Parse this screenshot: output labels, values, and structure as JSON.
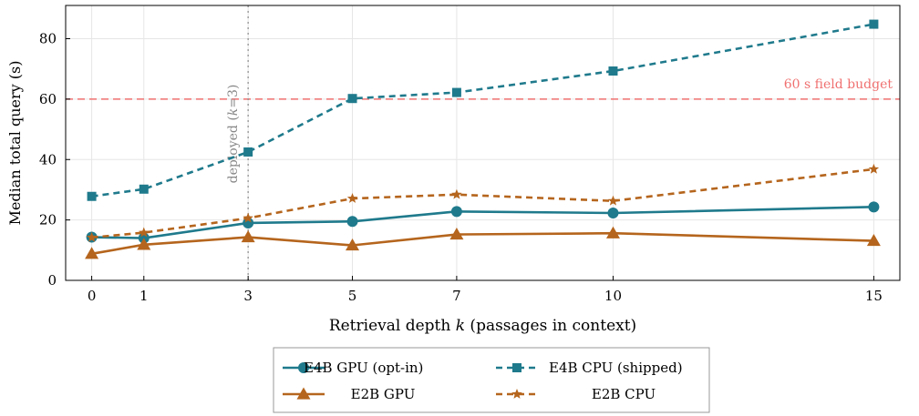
{
  "chart_data": {
    "type": "line",
    "title": "",
    "xlabel_parts": [
      "Retrieval depth ",
      "k",
      " (passages in context)"
    ],
    "ylabel": "Median total query (s)",
    "x": [
      0,
      1,
      3,
      5,
      7,
      10,
      15
    ],
    "xticks": [
      "0",
      "1",
      "3",
      "5",
      "7",
      "10",
      "15"
    ],
    "yticks": [
      "0",
      "20",
      "40",
      "60",
      "80"
    ],
    "xlim": [
      -0.5,
      15.5
    ],
    "ylim": [
      0,
      91
    ],
    "grid": true,
    "legend_position": "bottom-center",
    "series": [
      {
        "name": "E4B GPU (opt-in)",
        "values": [
          14.3,
          14.0,
          19.0,
          19.5,
          22.8,
          22.3,
          24.3
        ],
        "color": "#1f7a8c",
        "dash": "solid",
        "marker": "circle"
      },
      {
        "name": "E4B CPU (shipped)",
        "values": [
          27.8,
          30.2,
          42.5,
          60.2,
          62.2,
          69.3,
          84.8
        ],
        "color": "#1f7a8c",
        "dash": "dashed",
        "marker": "square"
      },
      {
        "name": "E2B GPU",
        "values": [
          8.8,
          11.8,
          14.3,
          11.6,
          15.2,
          15.6,
          13.1
        ],
        "color": "#b5651d",
        "dash": "solid",
        "marker": "triangle"
      },
      {
        "name": "E2B CPU",
        "values": [
          14.2,
          15.8,
          20.6,
          27.1,
          28.4,
          26.3,
          36.8
        ],
        "color": "#b5651d",
        "dash": "dashed",
        "marker": "star"
      }
    ],
    "annotations": {
      "budget_line": {
        "y": 60,
        "label": "60 s field budget",
        "color": "#f07070"
      },
      "deployed_line": {
        "x": 3,
        "label_parts": [
          "deployed (",
          "k",
          "=3)"
        ],
        "color": "#999999"
      }
    }
  }
}
